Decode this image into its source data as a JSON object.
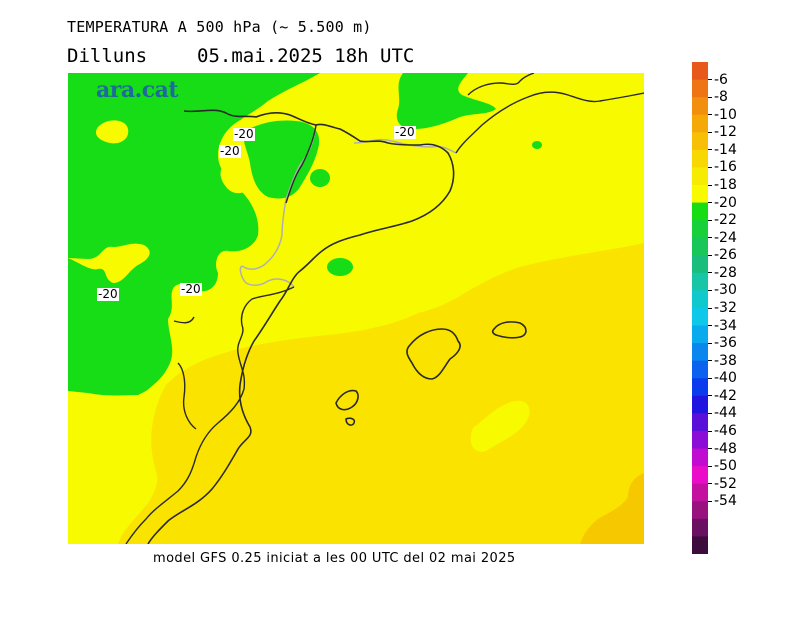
{
  "header": {
    "title": "TEMPERATURA A 500 hPa (~ 5.500 m)",
    "day": "Dilluns",
    "datetime": "05.mai.2025 18h UTC"
  },
  "map": {
    "brand": "ara.cat",
    "contour_value": "-20",
    "colors": {
      "band_minus20_to_minus18": "#f8fa00",
      "band_minus18_to_minus16": "#fbe300",
      "band_minus16_to_minus14": "#f6c800",
      "band_minus22_to_minus20": "#16dd16",
      "coastline": "#2a2a2a",
      "border": "#b0b0b0"
    }
  },
  "footer": {
    "caption": "model GFS 0.25 iniciat a les 00 UTC del 02 mai 2025"
  },
  "colorbar": {
    "ticks": [
      "-6",
      "-8",
      "-10",
      "-12",
      "-14",
      "-16",
      "-18",
      "-20",
      "-22",
      "-24",
      "-26",
      "-28",
      "-30",
      "-32",
      "-34",
      "-36",
      "-38",
      "-40",
      "-42",
      "-44",
      "-46",
      "-48",
      "-50",
      "-52",
      "-54"
    ],
    "segments": [
      "#e8581a",
      "#ee7414",
      "#f28f0c",
      "#f5a908",
      "#f7c006",
      "#f7d803",
      "#f6ec02",
      "#f8fa00",
      "#18dd14",
      "#17d03a",
      "#18c65a",
      "#19be7c",
      "#16c6a6",
      "#0fc9cc",
      "#0ec8ea",
      "#0aaaee",
      "#0a86ee",
      "#0a62ee",
      "#0a3cee",
      "#1f14e0",
      "#5a10d8",
      "#8c0ed6",
      "#c00cd0",
      "#ea0cc8",
      "#c4109e",
      "#98117e",
      "#6a1060",
      "#3c0c3c"
    ]
  }
}
